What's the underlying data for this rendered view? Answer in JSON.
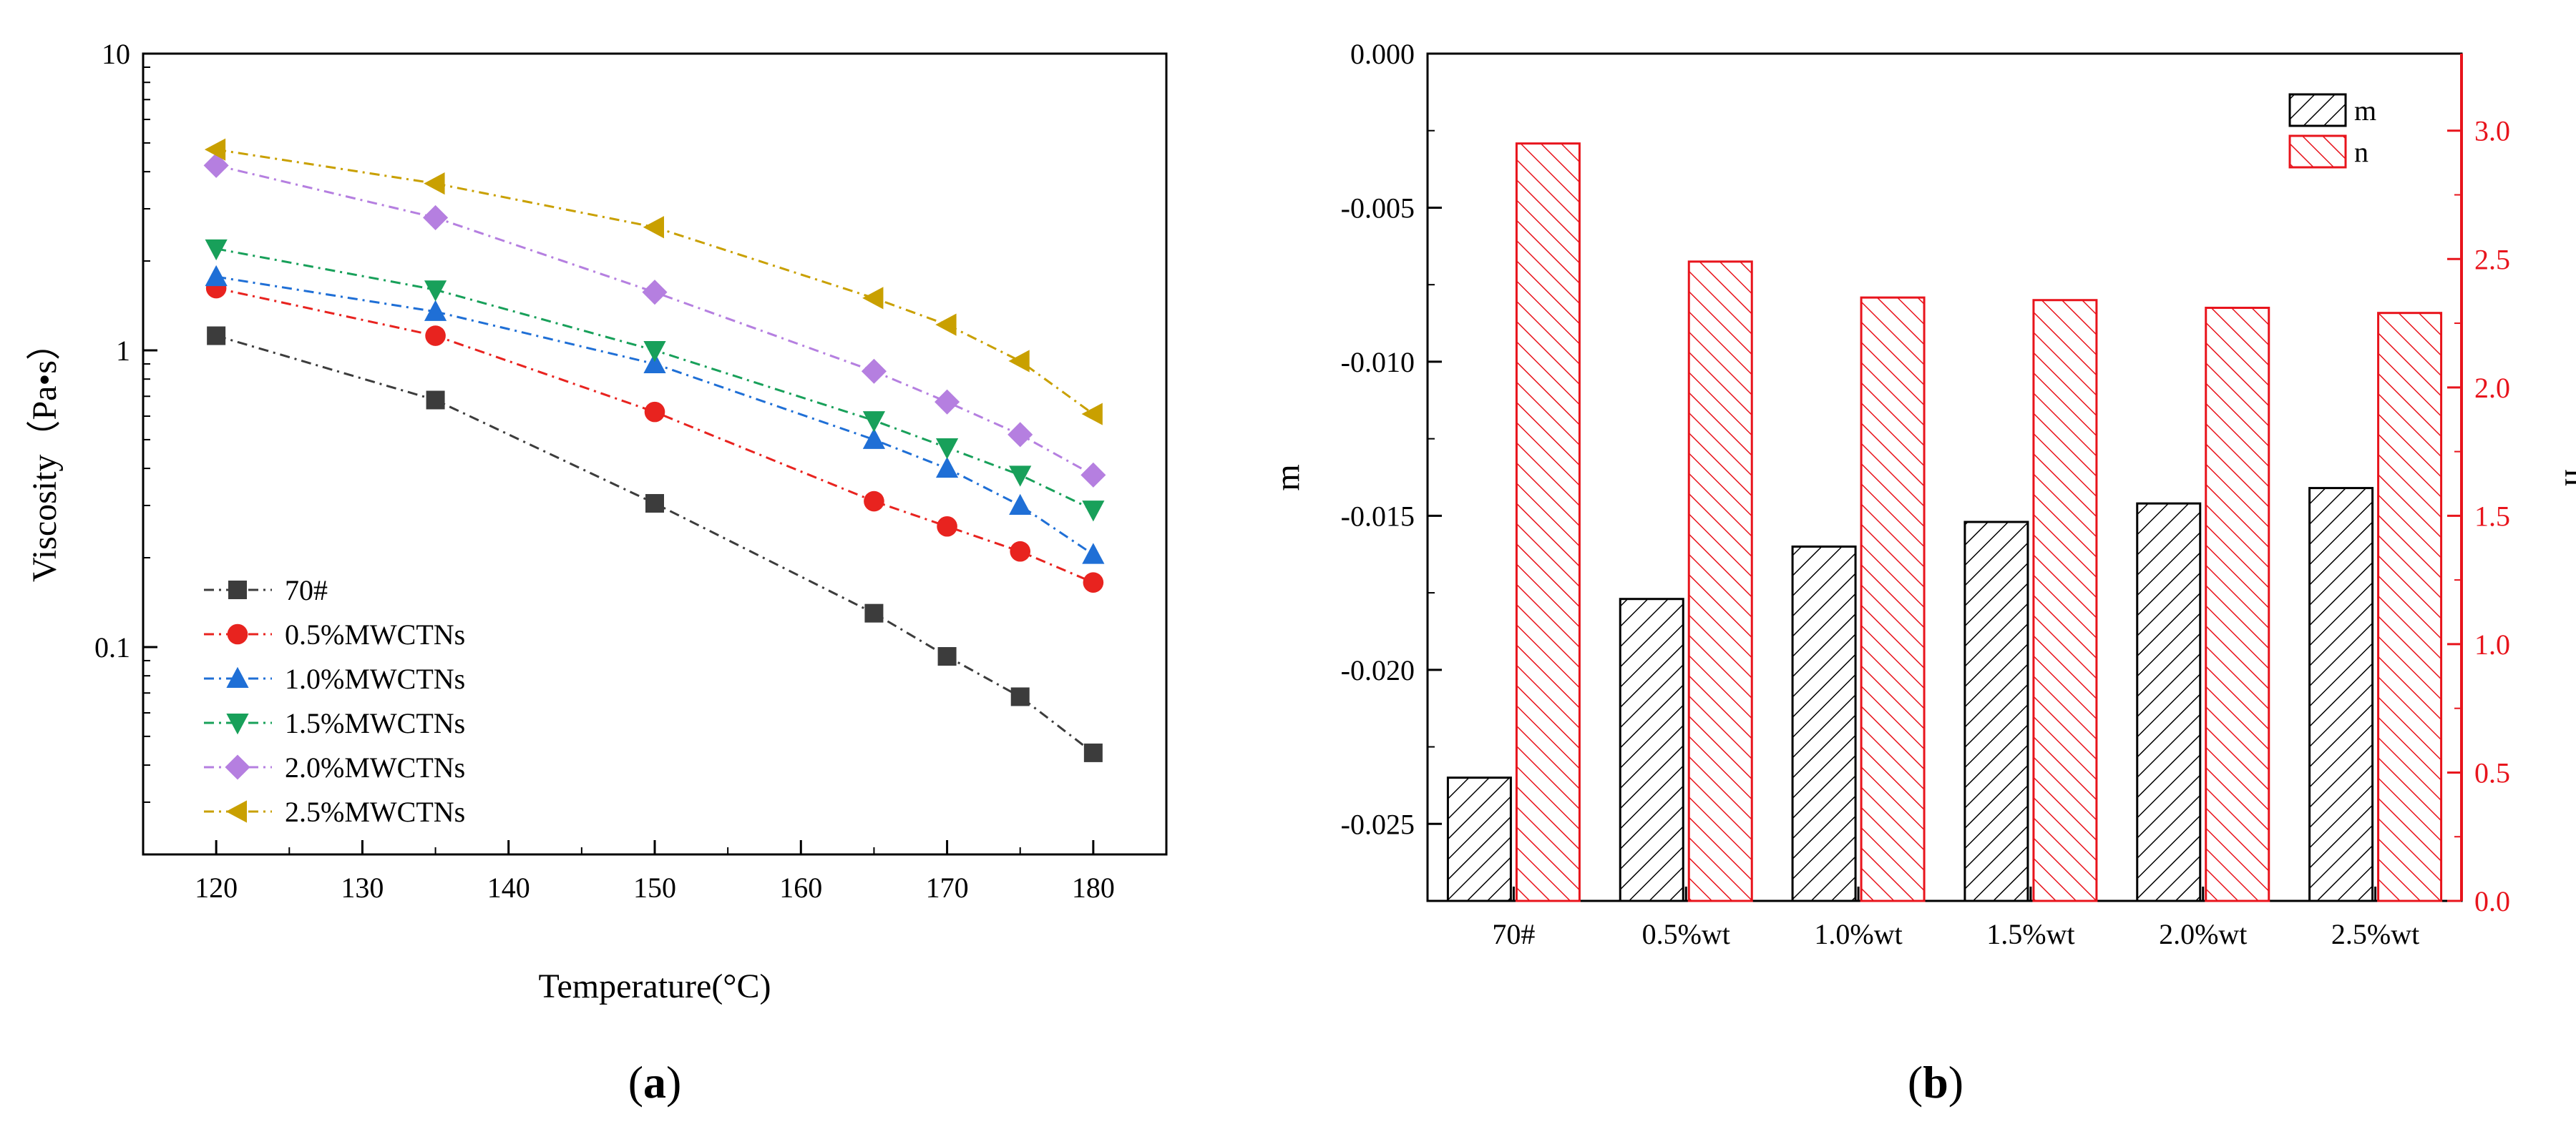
{
  "chart_data": [
    {
      "type": "line",
      "panel_label": {
        "open": "(",
        "letter": "a",
        "close": ")"
      },
      "xlabel": "Temperature(°C)",
      "ylabel": "Viscosity（Pa•s）",
      "yscale": "log",
      "xlim": [
        115,
        185
      ],
      "ylim": [
        0.02,
        10
      ],
      "x_ticks": [
        120,
        130,
        140,
        150,
        160,
        170,
        180
      ],
      "y_ticks": [
        0.1,
        1,
        10
      ],
      "y_tick_labels": [
        "0.1",
        "1",
        "10"
      ],
      "x": [
        120,
        135,
        150,
        165,
        170,
        175,
        180
      ],
      "legend_position": "lower-left",
      "series": [
        {
          "name": "70#",
          "color": "#3c3c3c",
          "marker": "square",
          "values": [
            1.12,
            0.68,
            0.305,
            0.13,
            0.093,
            0.068,
            0.044
          ]
        },
        {
          "name": "0.5%MWCTNs",
          "color": "#e8231f",
          "marker": "circle",
          "values": [
            1.62,
            1.12,
            0.62,
            0.31,
            0.255,
            0.21,
            0.165
          ]
        },
        {
          "name": "1.0%MWCTNs",
          "color": "#1f6fd6",
          "marker": "triangle-up",
          "values": [
            1.77,
            1.35,
            0.9,
            0.5,
            0.4,
            0.3,
            0.205
          ]
        },
        {
          "name": "1.5%MWCTNs",
          "color": "#18a05a",
          "marker": "triangle-down",
          "values": [
            2.2,
            1.6,
            1.0,
            0.58,
            0.47,
            0.38,
            0.29
          ]
        },
        {
          "name": "2.0%MWCTNs",
          "color": "#b57fe0",
          "marker": "diamond",
          "values": [
            4.2,
            2.8,
            1.57,
            0.85,
            0.67,
            0.52,
            0.38
          ]
        },
        {
          "name": "2.5%MWCTNs",
          "color": "#c9a000",
          "marker": "triangle-left",
          "values": [
            4.75,
            3.65,
            2.6,
            1.5,
            1.22,
            0.92,
            0.61
          ]
        }
      ]
    },
    {
      "type": "bar",
      "panel_label": {
        "open": "(",
        "letter": "b",
        "close": ")"
      },
      "categories": [
        "70#",
        "0.5%wt",
        "1.0%wt",
        "1.5%wt",
        "2.0%wt",
        "2.5%wt"
      ],
      "ylabel_left": "m",
      "ylabel_right": "n",
      "ylim_left": [
        -0.0275,
        0
      ],
      "ylim_right": [
        0,
        3.3
      ],
      "y_ticks_left": [
        "0.000",
        "-0.005",
        "-0.010",
        "-0.015",
        "-0.020",
        "-0.025"
      ],
      "y_ticks_right": [
        "0.0",
        "0.5",
        "1.0",
        "1.5",
        "2.0",
        "2.5",
        "3.0"
      ],
      "legend_position": "top-right",
      "series": [
        {
          "name": "m",
          "axis": "left",
          "color": "#000000",
          "hatch": "backslash",
          "values": [
            -0.0235,
            -0.0177,
            -0.016,
            -0.0152,
            -0.0146,
            -0.0141
          ]
        },
        {
          "name": "n",
          "axis": "right",
          "color": "#e8141c",
          "hatch": "slash",
          "values": [
            2.95,
            2.49,
            2.35,
            2.34,
            2.31,
            2.29
          ]
        }
      ]
    }
  ]
}
